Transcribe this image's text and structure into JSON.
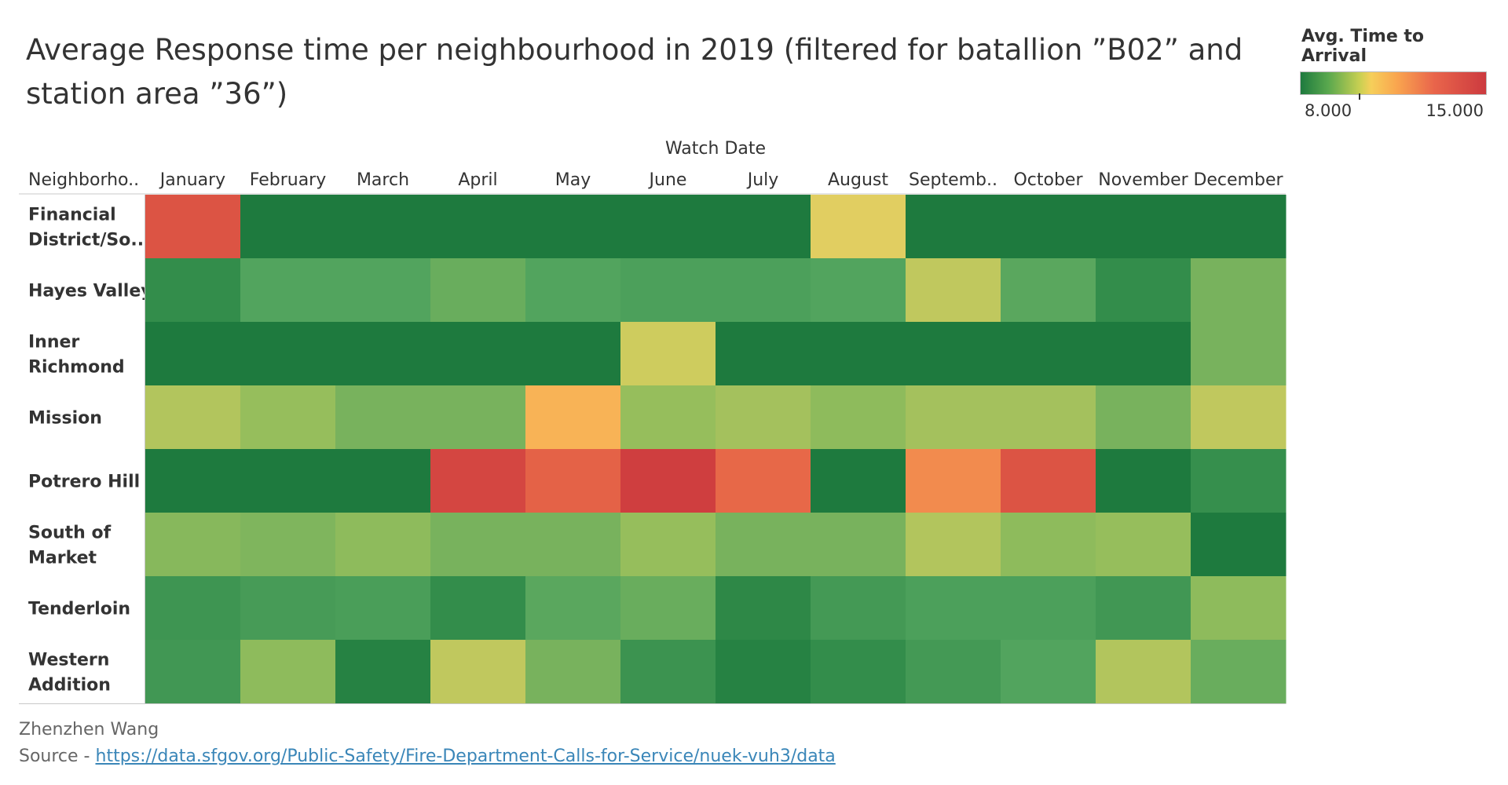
{
  "title": "Average Response time per neighbourhood in 2019 (filtered for batallion ”B02” and station area ”36”)",
  "legend": {
    "title": "Avg. Time to Arrival",
    "min_label": "8.000",
    "max_label": "15.000"
  },
  "author": "Zhenzhen Wang",
  "source_prefix": "Source - ",
  "source_url": "https://data.sfgov.org/Public-Safety/Fire-Department-Calls-for-Service/nuek-vuh3/data",
  "colors": {
    "low": "#1e7a3e",
    "mid": "#f6cf5a",
    "high": "#cc3a3f"
  },
  "chart_data": {
    "type": "heatmap",
    "title": "Average Response time per neighbourhood in 2019 (filtered for batallion ”B02” and station area ”36”)",
    "xlabel": "Watch Date",
    "ylabel": "Neighborho..",
    "x": [
      "January",
      "February",
      "March",
      "April",
      "May",
      "June",
      "July",
      "August",
      "Septemb..",
      "October",
      "November",
      "December"
    ],
    "y": [
      "Financial District/So..",
      "Hayes Valley",
      "Inner Richmond",
      "Mission",
      "Potrero Hill",
      "South of Market",
      "Tenderloin",
      "Western Addition"
    ],
    "value_range": [
      8.0,
      15.0
    ],
    "values": [
      [
        14.0,
        5.0,
        5.0,
        5.0,
        5.0,
        5.0,
        5.0,
        10.0,
        5.0,
        5.0,
        5.0,
        5.0
      ],
      [
        7.4,
        8.5,
        8.5,
        8.8,
        8.5,
        8.3,
        8.3,
        8.5,
        9.7,
        8.6,
        7.4,
        9.0
      ],
      [
        5.0,
        5.0,
        5.0,
        5.0,
        5.0,
        9.8,
        5.0,
        5.0,
        5.0,
        5.0,
        5.0,
        9.0
      ],
      [
        9.6,
        9.4,
        9.0,
        9.0,
        11.0,
        9.4,
        9.5,
        9.3,
        9.5,
        9.5,
        9.0,
        9.7
      ],
      [
        5.0,
        5.0,
        5.0,
        14.5,
        13.5,
        14.8,
        13.3,
        5.0,
        12.2,
        14.0,
        5.0,
        7.5
      ],
      [
        9.2,
        9.1,
        9.3,
        9.0,
        9.0,
        9.4,
        9.0,
        9.0,
        9.6,
        9.3,
        9.4,
        5.0
      ],
      [
        7.8,
        8.1,
        8.2,
        7.4,
        8.6,
        8.8,
        7.2,
        8.0,
        8.3,
        8.3,
        7.9,
        9.3
      ],
      [
        7.9,
        9.3,
        6.5,
        9.7,
        9.0,
        7.7,
        6.5,
        7.4,
        8.0,
        8.5,
        9.6,
        8.8
      ]
    ]
  }
}
